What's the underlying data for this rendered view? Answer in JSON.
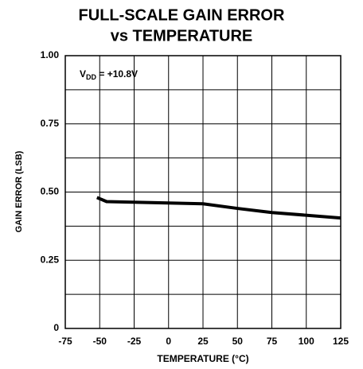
{
  "chart_data": {
    "type": "line",
    "title": [
      "FULL-SCALE GAIN ERROR",
      "vs TEMPERATURE"
    ],
    "annotation": [
      "V",
      "DD",
      " = +10.8V"
    ],
    "xlabel": "TEMPERATURE (°C)",
    "ylabel": "GAIN ERROR (LSB)",
    "x": [
      -52,
      -45,
      0,
      25,
      50,
      75,
      125
    ],
    "series": [
      {
        "color": "#000000",
        "values": [
          0.48,
          0.465,
          0.46,
          0.457,
          0.44,
          0.425,
          0.405
        ]
      }
    ],
    "xlim": [
      -75,
      125
    ],
    "xticks": [
      -75,
      -50,
      -25,
      0,
      25,
      50,
      75,
      100,
      125
    ],
    "ylim": [
      0,
      1
    ],
    "yticks": [
      0,
      0.25,
      {
        "value": 0.5,
        "label": "0.50"
      },
      0.75,
      {
        "value": 1,
        "label": "1.00"
      }
    ],
    "yminor": [
      0.125,
      0.375,
      0.625,
      0.875
    ],
    "grid": true
  }
}
